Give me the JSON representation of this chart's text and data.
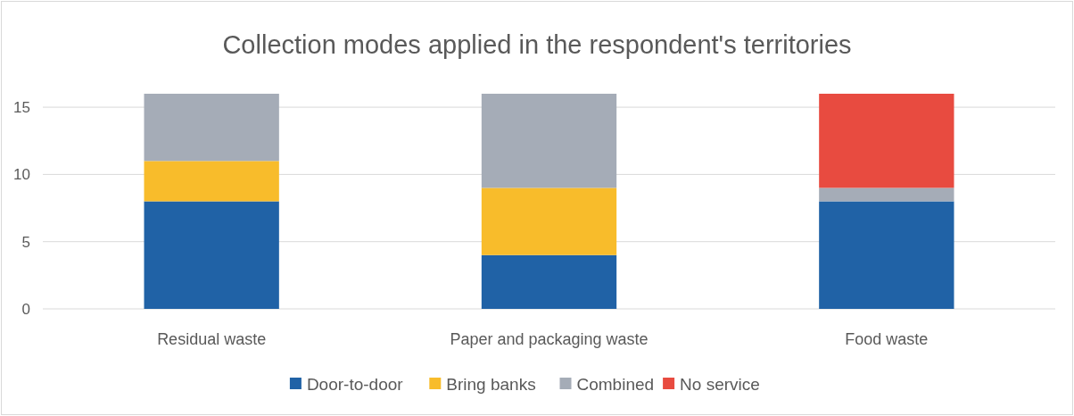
{
  "chart_data": {
    "type": "bar",
    "title": "Collection modes applied in the respondent's territories",
    "categories": [
      "Residual waste",
      "Paper and packaging waste",
      "Food waste"
    ],
    "stacked": true,
    "series": [
      {
        "name": "Door-to-door",
        "color": "#2062a6",
        "values": [
          8,
          4,
          8
        ]
      },
      {
        "name": "Bring banks",
        "color": "#f8bc2b",
        "values": [
          3,
          5,
          0
        ]
      },
      {
        "name": "Combined",
        "color": "#a5acb7",
        "values": [
          5,
          7,
          1
        ]
      },
      {
        "name": "No service",
        "color": "#e84b40",
        "values": [
          0,
          0,
          7
        ]
      }
    ],
    "ylim": [
      0,
      16
    ],
    "yticks": [
      0,
      5,
      10,
      15
    ],
    "grid": "y",
    "legend": "bottom"
  }
}
